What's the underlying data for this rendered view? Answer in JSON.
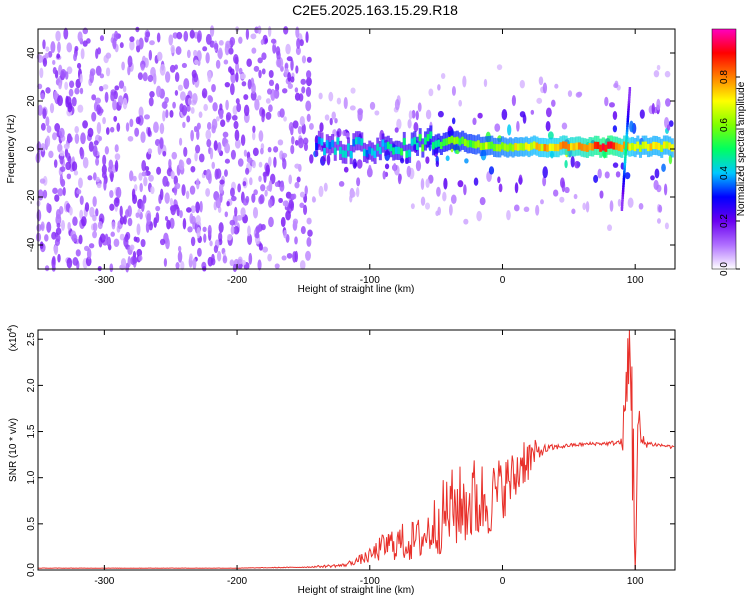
{
  "title": "C2E5.2025.163.15.29.R18",
  "colors": {
    "snr_line": "#e8302a",
    "axis": "#000000",
    "spectrum_base": "#7a1cf0"
  },
  "chart_data": [
    {
      "type": "heatmap",
      "name": "spectrogram",
      "xlabel": "Height of straight line (km)",
      "ylabel": "Frequency (Hz)",
      "xlim": [
        -350,
        130
      ],
      "ylim": [
        -50,
        50
      ],
      "xticks": [
        -300,
        -200,
        -100,
        0,
        100
      ],
      "yticks": [
        -40,
        -20,
        0,
        20,
        40
      ],
      "colorbar": {
        "label": "Normalized spectral amplitude",
        "range": [
          0,
          1
        ],
        "ticks": [
          "0.0",
          "0.2",
          "0.4",
          "0.6",
          "0.8"
        ],
        "tick_values": [
          0,
          0.2,
          0.4,
          0.6,
          0.8
        ],
        "colormap": [
          "#ffffff",
          "#b070ff",
          "#6a00f0",
          "#0000ff",
          "#00c8ff",
          "#00ff60",
          "#80ff00",
          "#ffff00",
          "#ff8000",
          "#ff0000",
          "#ff00c0"
        ]
      },
      "regions": [
        {
          "x_range": [
            -350,
            -145
          ],
          "description": "broadband noise",
          "amplitude": 0.15
        },
        {
          "x_range": [
            -145,
            -50
          ],
          "description": "emerging signal near 0 Hz",
          "amplitude": 0.35
        },
        {
          "x_range": [
            -50,
            130
          ],
          "description": "strong narrow band near 0 Hz",
          "amplitude": 0.7
        }
      ],
      "ridge_points": [
        {
          "x": -140,
          "y": 2,
          "amp": 0.35
        },
        {
          "x": -120,
          "y": 0,
          "amp": 0.4
        },
        {
          "x": -100,
          "y": 1,
          "amp": 0.4
        },
        {
          "x": -80,
          "y": -1,
          "amp": 0.45
        },
        {
          "x": -60,
          "y": 3,
          "amp": 0.5
        },
        {
          "x": -40,
          "y": 4,
          "amp": 0.55
        },
        {
          "x": -20,
          "y": 2,
          "amp": 0.6
        },
        {
          "x": 0,
          "y": 1,
          "amp": 0.65
        },
        {
          "x": 20,
          "y": 1,
          "amp": 0.7
        },
        {
          "x": 40,
          "y": 1,
          "amp": 0.75
        },
        {
          "x": 60,
          "y": 1,
          "amp": 0.8
        },
        {
          "x": 80,
          "y": 1,
          "amp": 0.9
        },
        {
          "x": 100,
          "y": 1,
          "amp": 0.7
        },
        {
          "x": 130,
          "y": 1,
          "amp": 0.7
        }
      ]
    },
    {
      "type": "line",
      "name": "snr",
      "xlabel": "Height of straight line (km)",
      "ylabel": "SNR (10 * v/v)",
      "multiplier_prefix": "(x10",
      "multiplier_exponent": "4",
      "multiplier_suffix": ")",
      "xlim": [
        -350,
        130
      ],
      "ylim": [
        0,
        2.6
      ],
      "xticks": [
        -300,
        -200,
        -100,
        0,
        100
      ],
      "yticks": [
        "0.0",
        "0.5",
        "1.0",
        "1.5",
        "2.0",
        "2.5"
      ],
      "ytick_values": [
        0,
        0.5,
        1.0,
        1.5,
        2.0,
        2.5
      ],
      "series": [
        {
          "x": [
            -350,
            -300,
            -250,
            -200,
            -150,
            -120,
            -110,
            -100,
            -90,
            -80,
            -70,
            -60,
            -50,
            -40,
            -30,
            -20,
            -10,
            0,
            10,
            15,
            20,
            30,
            40,
            50,
            60,
            70,
            80,
            85,
            90,
            92,
            95,
            97,
            98,
            100,
            102,
            105,
            110,
            120,
            130
          ],
          "y": [
            0.02,
            0.02,
            0.02,
            0.02,
            0.03,
            0.05,
            0.1,
            0.15,
            0.25,
            0.3,
            0.3,
            0.35,
            0.5,
            0.65,
            0.7,
            0.75,
            0.75,
            0.9,
            1.0,
            1.2,
            1.2,
            1.3,
            1.33,
            1.35,
            1.36,
            1.37,
            1.37,
            1.38,
            1.38,
            1.6,
            2.2,
            2.6,
            1.4,
            0.05,
            1.5,
            1.38,
            1.37,
            1.35,
            1.33
          ],
          "noise": [
            0.002,
            0.002,
            0.002,
            0.002,
            0.005,
            0.02,
            0.04,
            0.08,
            0.15,
            0.2,
            0.22,
            0.25,
            0.35,
            0.45,
            0.45,
            0.5,
            0.4,
            0.35,
            0.3,
            0.3,
            0.25,
            0.06,
            0.03,
            0.02,
            0.02,
            0.02,
            0.02,
            0.03,
            0.05,
            0.4,
            0.8,
            1.2,
            0.9,
            0.5,
            0.5,
            0.1,
            0.03,
            0.02,
            0.02
          ]
        }
      ]
    }
  ]
}
